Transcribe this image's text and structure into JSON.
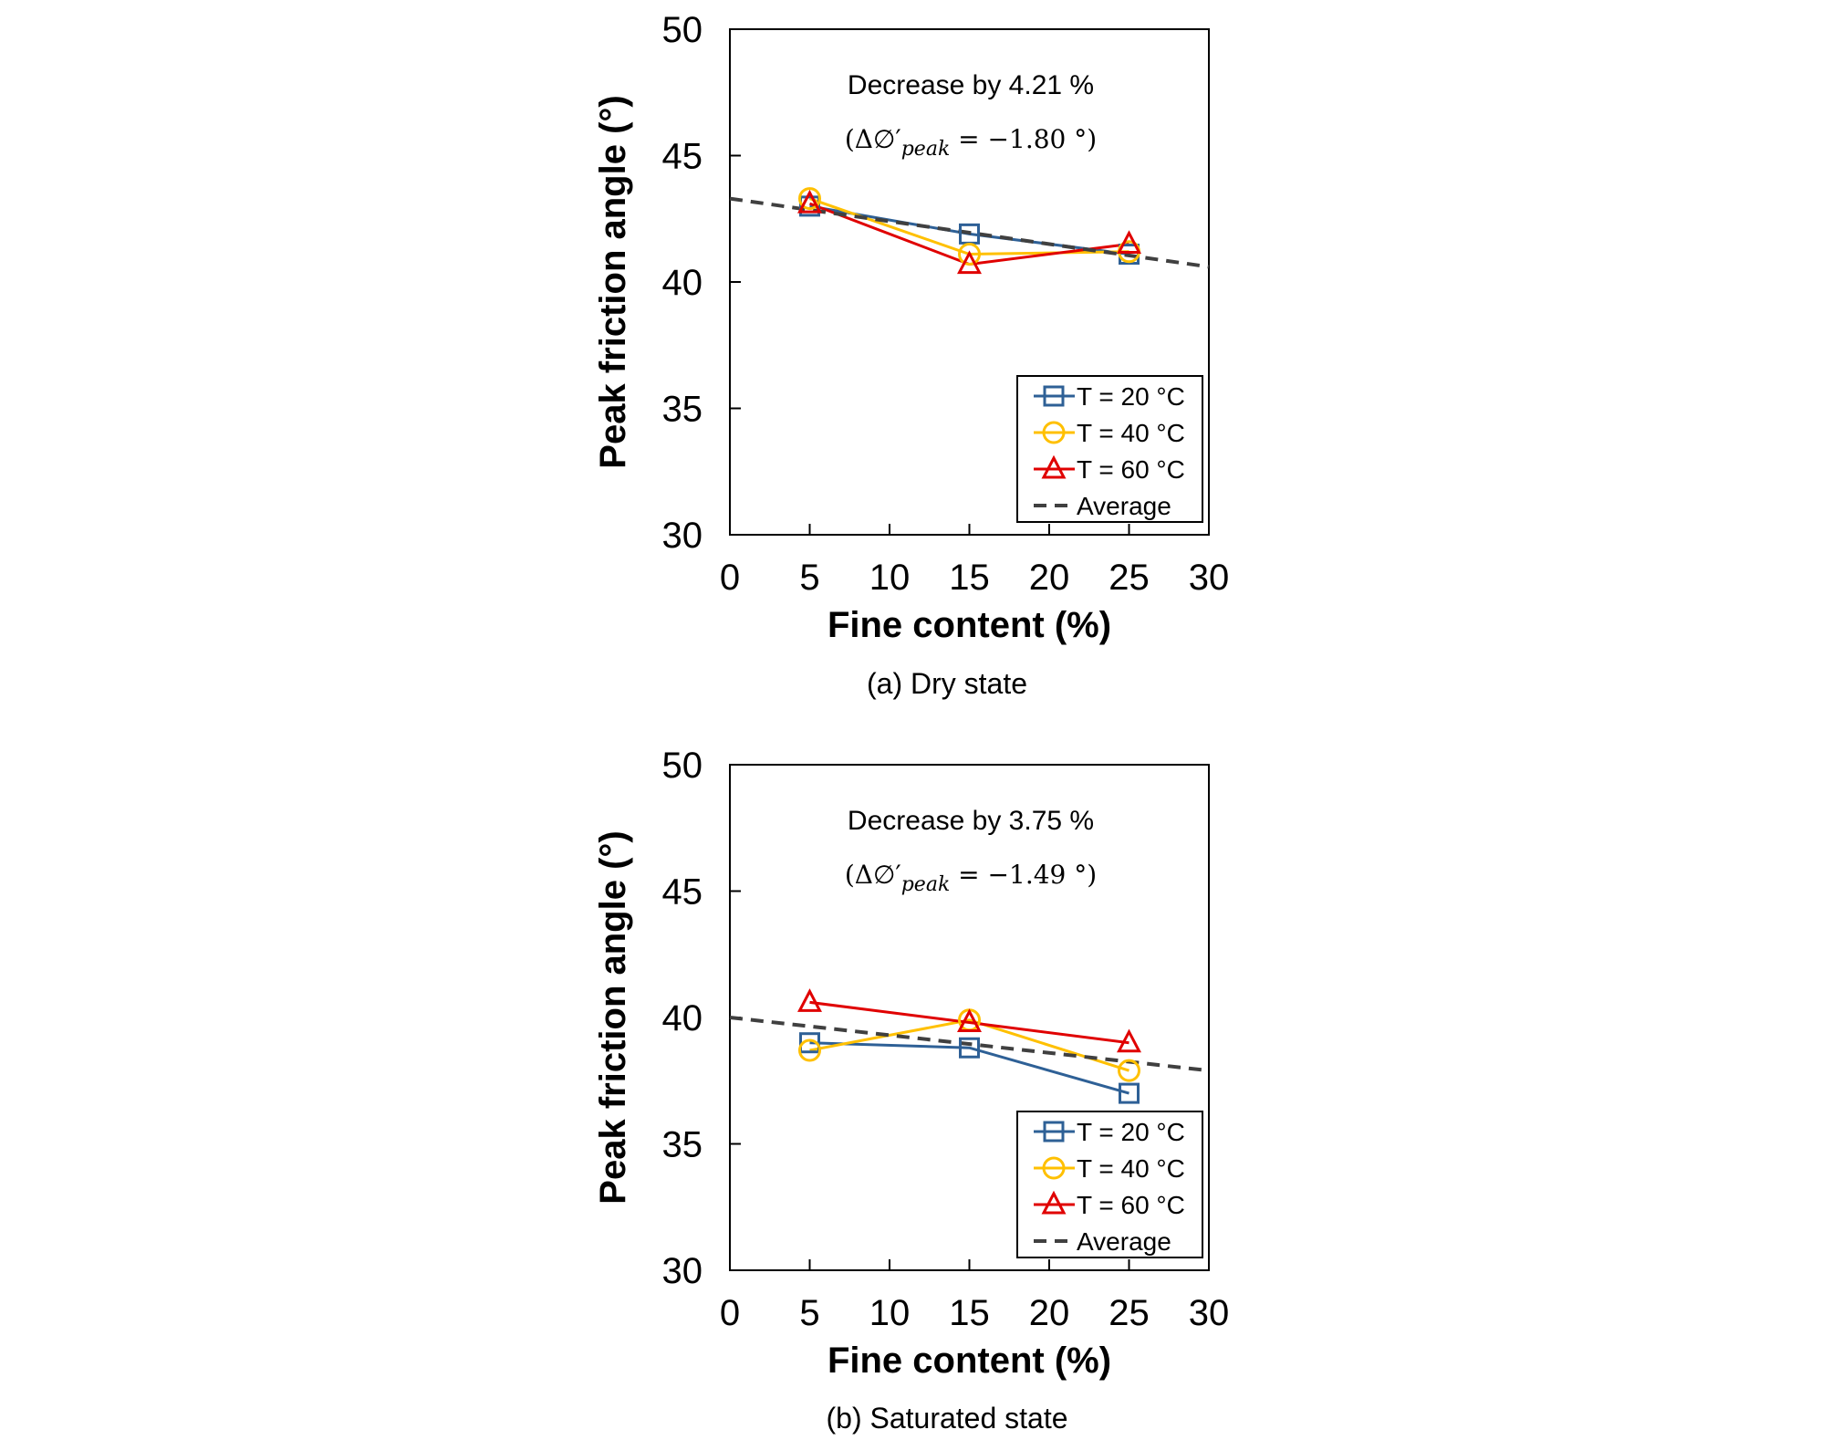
{
  "chart_data": [
    {
      "type": "line",
      "caption": "(a)  Dry  state",
      "xlabel": "Fine content (%)",
      "ylabel": "Peak friction angle (°)",
      "xlim": [
        0,
        30
      ],
      "ylim": [
        30,
        50
      ],
      "xticks": [
        0,
        5,
        10,
        15,
        20,
        25,
        30
      ],
      "yticks": [
        30,
        35,
        40,
        45,
        50
      ],
      "annotation": "Decrease by 4.21 %",
      "formula": {
        "prefix": "(Δ∅′",
        "sub": "peak",
        "suffix": " = −1.80 °)"
      },
      "legend_position": "bottom-right",
      "series": [
        {
          "name": "T = 20 °C",
          "color": "#2e6096",
          "marker": "square",
          "x": [
            5,
            15,
            25
          ],
          "y": [
            43.0,
            41.9,
            41.1
          ]
        },
        {
          "name": "T = 40 °C",
          "color": "#ffc000",
          "marker": "circle",
          "x": [
            5,
            15,
            25
          ],
          "y": [
            43.3,
            41.1,
            41.2
          ]
        },
        {
          "name": "T = 60 °C",
          "color": "#e00000",
          "marker": "triangle",
          "x": [
            5,
            15,
            25
          ],
          "y": [
            43.1,
            40.7,
            41.5
          ]
        },
        {
          "name": "Average",
          "color": "#404040",
          "marker": "none",
          "dashed": true,
          "x": [
            0,
            30
          ],
          "y": [
            43.3,
            40.6
          ]
        }
      ]
    },
    {
      "type": "line",
      "caption": "(b)  Saturated  state",
      "xlabel": "Fine content (%)",
      "ylabel": "Peak friction angle (°)",
      "xlim": [
        0,
        30
      ],
      "ylim": [
        30,
        50
      ],
      "xticks": [
        0,
        5,
        10,
        15,
        20,
        25,
        30
      ],
      "yticks": [
        30,
        35,
        40,
        45,
        50
      ],
      "annotation": "Decrease by 3.75 %",
      "formula": {
        "prefix": "(Δ∅′",
        "sub": "peak",
        "suffix": " = −1.49 °)"
      },
      "legend_position": "bottom-right",
      "series": [
        {
          "name": "T = 20 °C",
          "color": "#2e6096",
          "marker": "square",
          "x": [
            5,
            15,
            25
          ],
          "y": [
            39.0,
            38.8,
            37.0
          ]
        },
        {
          "name": "T = 40 °C",
          "color": "#ffc000",
          "marker": "circle",
          "x": [
            5,
            15,
            25
          ],
          "y": [
            38.7,
            39.9,
            37.9
          ]
        },
        {
          "name": "T = 60 °C",
          "color": "#e00000",
          "marker": "triangle",
          "x": [
            5,
            15,
            25
          ],
          "y": [
            40.6,
            39.8,
            39.0
          ]
        },
        {
          "name": "Average",
          "color": "#404040",
          "marker": "none",
          "dashed": true,
          "x": [
            0,
            30
          ],
          "y": [
            40.0,
            37.9
          ]
        }
      ]
    }
  ]
}
